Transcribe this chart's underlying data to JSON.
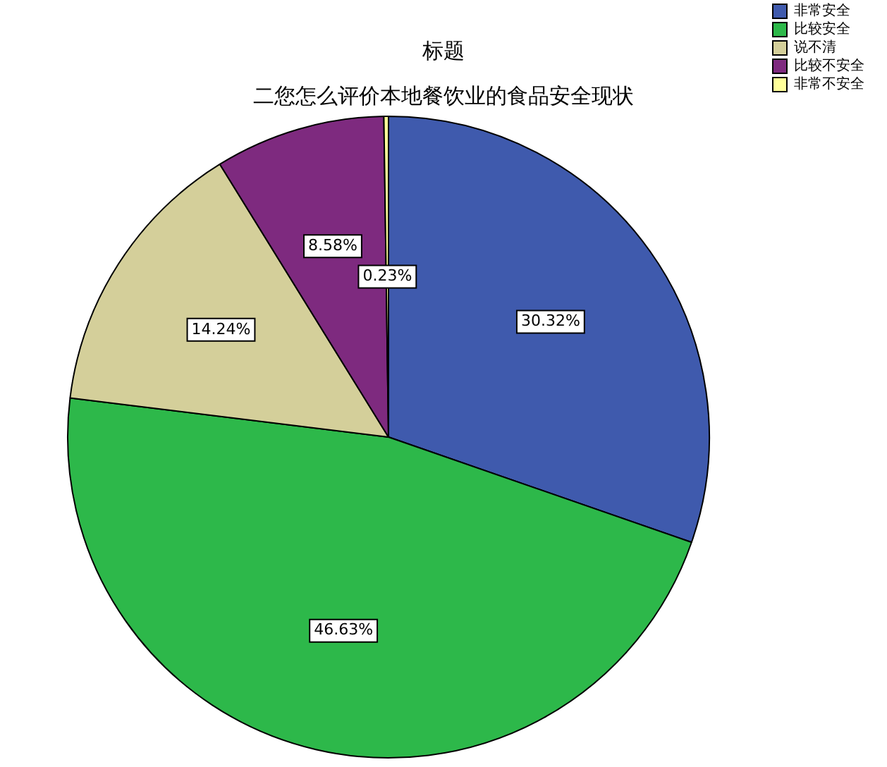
{
  "chart_data": {
    "type": "pie",
    "title": "标题",
    "subtitle": "二您怎么评价本地餐饮业的食品安全现状",
    "categories": [
      "非常安全",
      "比较安全",
      "说不清",
      "比较不安全",
      "非常不安全"
    ],
    "values": [
      30.32,
      46.63,
      14.24,
      8.58,
      0.23
    ],
    "value_labels": [
      "30.32%",
      "46.63%",
      "14.24%",
      "8.58%",
      "0.23%"
    ],
    "colors": [
      "#3f5aad",
      "#2db84a",
      "#d4cf9a",
      "#7e2a7f",
      "#ffff99"
    ],
    "legend": "top right"
  }
}
